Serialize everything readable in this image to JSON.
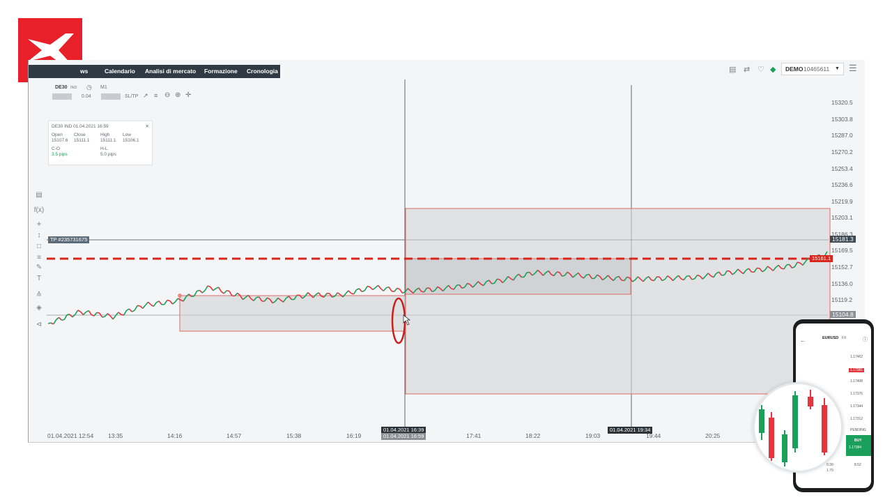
{
  "colors": {
    "brand": "#e8202a",
    "navbar": "#2f3a44",
    "up": "#1aa05a",
    "down": "#e5343d",
    "rect_fill": "#cfd2d5",
    "rect_stroke": "#e06a63",
    "dash": "#d9261c",
    "marker": "#c9201c"
  },
  "toolbar": {
    "nav": [
      "ws",
      "Calendario",
      "Analisi di mercato",
      "Formazione",
      "Cronologia"
    ],
    "account_type": "DEMO",
    "account_number": "10465611",
    "icons": [
      "layout-icon",
      "dollar-transfer-icon",
      "bell-icon",
      "diamond-icon",
      "chevron-down-icon",
      "menu-icon"
    ]
  },
  "chart_toolbar": {
    "symbol": "DE30",
    "symbol_badge": "IND",
    "timeframe": "M1",
    "volume": "0.04",
    "sl_tp": "SL/TP"
  },
  "ohlc_box": {
    "header": "DE30  IND   01.04.2021 16:59",
    "open_label": "Open",
    "open": "15107.6",
    "close_label": "Close",
    "close": "15111.1",
    "high_label": "High",
    "high": "15111.1",
    "low_label": "Low",
    "low": "15106.1",
    "co_label": "C-O",
    "co": "3.5 pips",
    "hl_label": "H-L",
    "hl": "5.0 pips"
  },
  "left_tools": [
    "indicators-icon",
    "fx-icon",
    "crosshair-icon",
    "line-tool-icon",
    "rectangle-icon",
    "fib-icon",
    "pencil-icon",
    "text-icon",
    "trend-icon",
    "layers-icon",
    "share-icon"
  ],
  "tp_label": "TP  #235731675",
  "chart_data": {
    "type": "line",
    "instrument": "DE30",
    "y_ticks": [
      "15320.5",
      "15303.8",
      "15287.0",
      "15270.2",
      "15253.4",
      "15236.6",
      "15219.9",
      "15203.1",
      "15186.3",
      "15169.5",
      "15152.7",
      "15136.0",
      "15119.2"
    ],
    "x_ticks": [
      "01.04.2021 12:54",
      "13:35",
      "14:16",
      "14:57",
      "15:38",
      "16:19",
      "17:41",
      "18:22",
      "19:03",
      "19:44",
      "20:25"
    ],
    "current_price": "15161.1",
    "tp_price": "15181.3",
    "crosshair_price": "15104.8",
    "crosshair_time_1": "01.04.2021 16:39",
    "crosshair_time_2": "01.04.2021 16:59",
    "crosshair_time_3": "01.04.2021 19:34",
    "x": [
      "12:54",
      "13:15",
      "13:35",
      "13:55",
      "14:16",
      "14:35",
      "14:57",
      "15:15",
      "15:38",
      "15:55",
      "16:19",
      "16:39",
      "16:59",
      "17:20",
      "17:41",
      "18:00",
      "18:22",
      "18:40",
      "19:03",
      "19:20",
      "19:44",
      "20:05",
      "20:25",
      "20:45",
      "21:00"
    ],
    "y": [
      15095,
      15107,
      15102,
      15114,
      15118,
      15132,
      15122,
      15118,
      15124,
      15124,
      15132,
      15128,
      15130,
      15134,
      15139,
      15147,
      15145,
      15142,
      15140,
      15141,
      15142,
      15147,
      15150,
      15154,
      15166
    ]
  },
  "phone": {
    "symbol": "EURUSD",
    "badge": "FX",
    "price_levels": [
      "1.17462",
      "1.17381",
      "1.17408",
      "1.17376",
      "1.17344",
      "1.17312"
    ],
    "label": "PENDING",
    "buy_label": "BUY",
    "buy_price": "1.17384",
    "stats": [
      "0.30",
      "8.52",
      "1.70"
    ]
  }
}
